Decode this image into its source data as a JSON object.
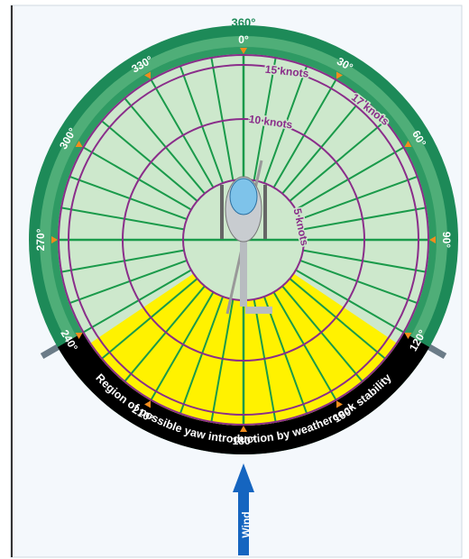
{
  "dial": {
    "top_label": "360°",
    "labels": [
      "0°",
      "30°",
      "60°",
      "90°",
      "120°",
      "150°",
      "180°",
      "210°",
      "240°",
      "270°",
      "300°",
      "330°"
    ],
    "knots": [
      "5 knots",
      "10 knots",
      "15 knots",
      "17 knots"
    ],
    "region": "Region of possible yaw introduction by weathercock stability"
  },
  "wind": "Wind"
}
